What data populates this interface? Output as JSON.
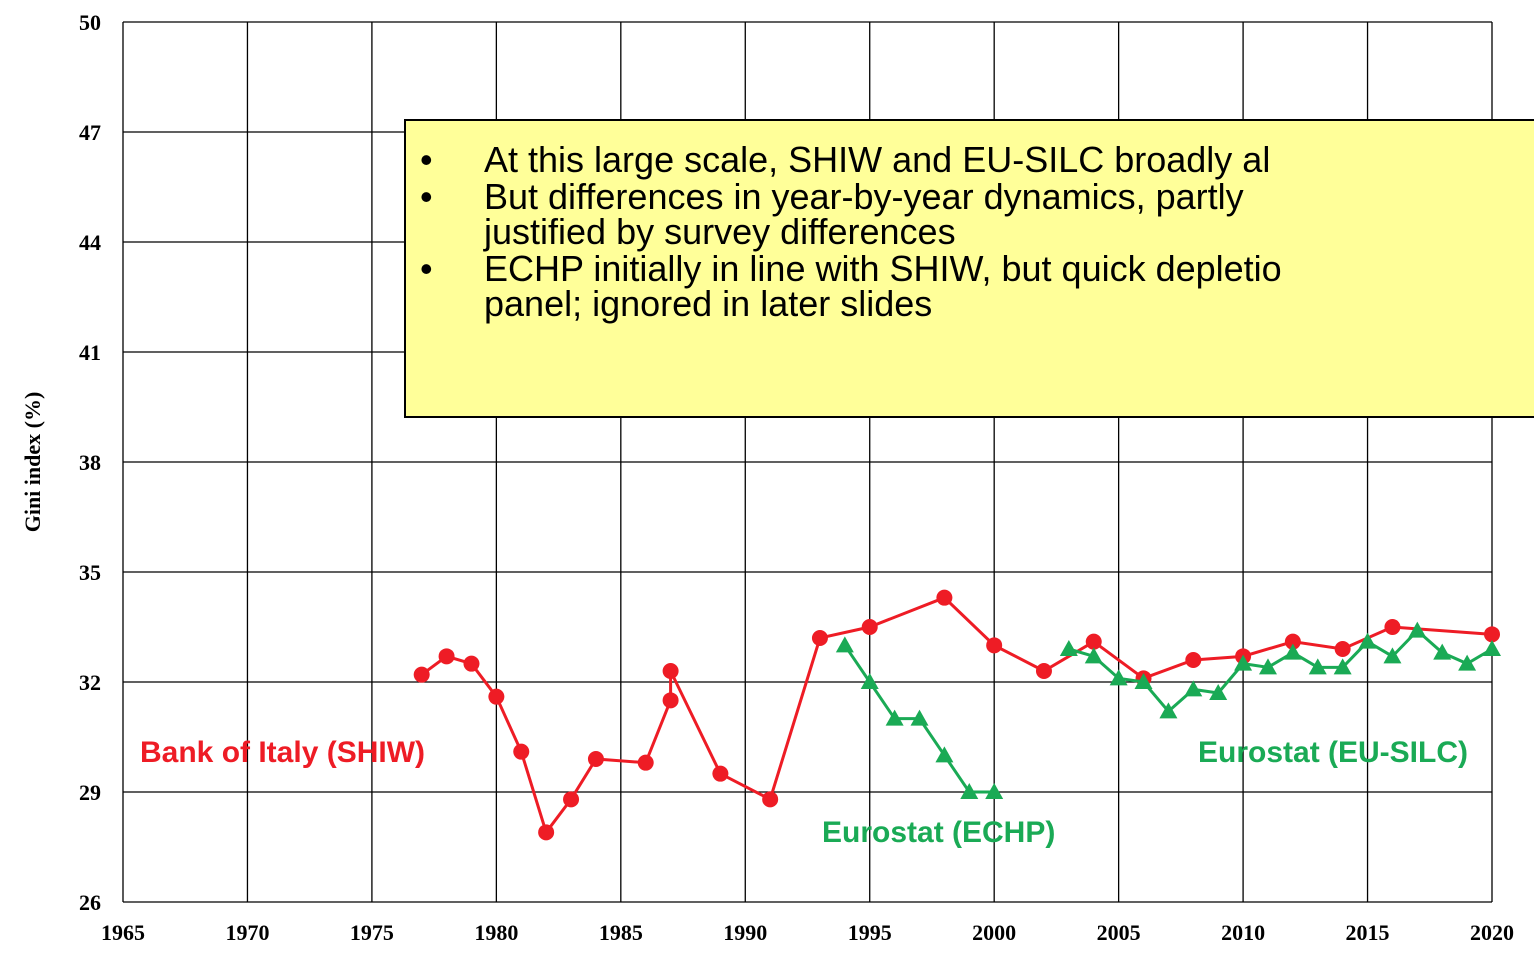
{
  "chart_data": {
    "type": "line",
    "ylabel": "Gini index (%)",
    "xlim": [
      1965,
      2020
    ],
    "xticks": [
      1965,
      1970,
      1975,
      1980,
      1985,
      1990,
      1995,
      2000,
      2005,
      2010,
      2015,
      2020
    ],
    "ylim": [
      26,
      50
    ],
    "yticks": [
      26,
      29,
      32,
      35,
      38,
      41,
      44,
      47,
      50
    ],
    "grid": true,
    "series": [
      {
        "name": "Bank of Italy (SHIW)",
        "color": "#ee1c25",
        "marker": "circle",
        "x": [
          1977,
          1978,
          1979,
          1980,
          1981,
          1982,
          1983,
          1984,
          1986,
          1987,
          1987,
          1989,
          1991,
          1993,
          1995,
          1998,
          2000,
          2002,
          2004,
          2006,
          2008,
          2010,
          2012,
          2014,
          2016,
          2020
        ],
        "values": [
          32.2,
          32.7,
          32.5,
          31.6,
          30.1,
          27.9,
          28.8,
          29.9,
          29.8,
          31.5,
          32.3,
          29.5,
          28.8,
          33.2,
          33.5,
          34.3,
          33.0,
          32.3,
          33.1,
          32.1,
          32.6,
          32.7,
          33.1,
          32.9,
          33.5,
          33.3
        ]
      },
      {
        "name": "Eurostat (ECHP)",
        "color": "#1aaa55",
        "marker": "triangle",
        "x": [
          1994,
          1995,
          1996,
          1997,
          1998,
          1999,
          2000
        ],
        "values": [
          33.0,
          32.0,
          31.0,
          31.0,
          30.0,
          29.0,
          29.0
        ]
      },
      {
        "name": "Eurostat (EU-SILC)",
        "color": "#1aaa55",
        "marker": "triangle",
        "x": [
          2003,
          2004,
          2005,
          2006,
          2007,
          2008,
          2009,
          2010,
          2011,
          2012,
          2013,
          2014,
          2015,
          2016,
          2017,
          2018,
          2019,
          2020
        ],
        "values": [
          32.9,
          32.7,
          32.1,
          32.0,
          31.2,
          31.8,
          31.7,
          32.5,
          32.4,
          32.8,
          32.4,
          32.4,
          33.1,
          32.7,
          33.4,
          32.8,
          32.5,
          32.9
        ]
      }
    ],
    "annotation_bullets": [
      [
        "At this large scale, SHIW and EU-SILC broadly al"
      ],
      [
        "But differences in year-by-year dynamics, partly",
        "justified by survey differences"
      ],
      [
        "ECHP initially in line with SHIW, but quick depletio",
        "panel; ignored in later slides"
      ]
    ]
  }
}
